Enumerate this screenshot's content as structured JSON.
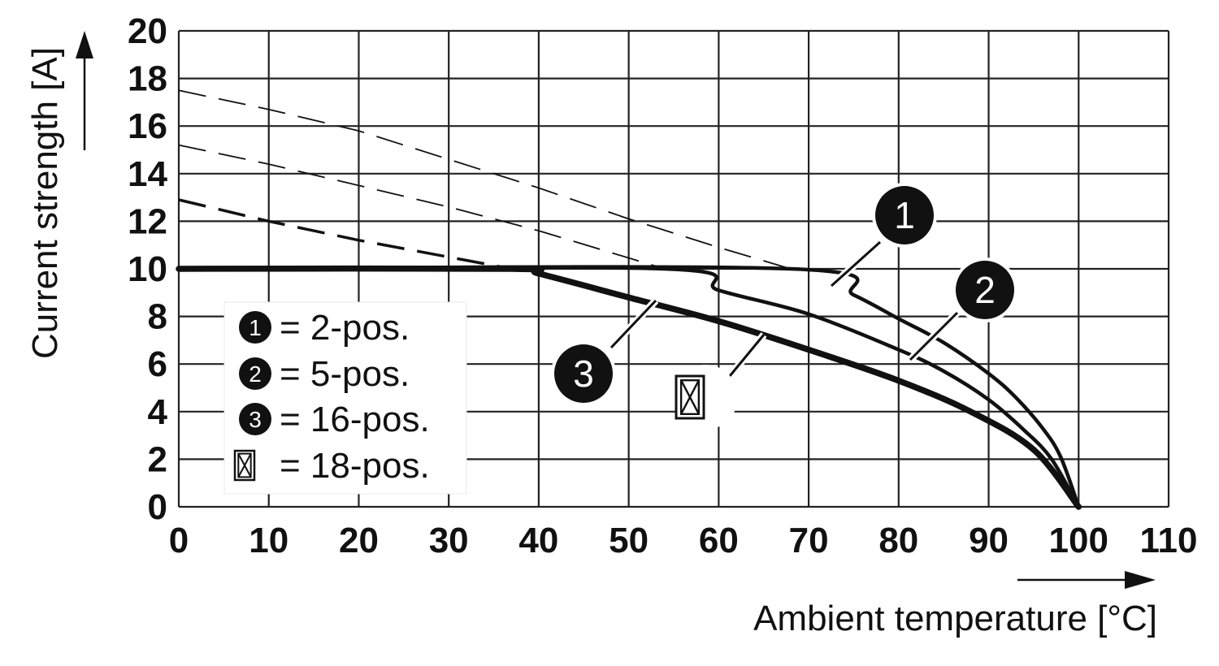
{
  "chart_data": {
    "type": "line",
    "xlabel": "Ambient temperature [°C]",
    "ylabel": "Current strength [A]",
    "xlim": [
      0,
      110
    ],
    "ylim": [
      0,
      20
    ],
    "x_ticks": [
      "0",
      "10",
      "20",
      "30",
      "40",
      "50",
      "60",
      "70",
      "80",
      "90",
      "100",
      "110"
    ],
    "y_ticks": [
      "0",
      "2",
      "4",
      "6",
      "8",
      "10",
      "12",
      "14",
      "16",
      "18",
      "20"
    ],
    "grid": true,
    "legend_position": "bottom-left",
    "colors": {
      "line": "#111111",
      "grid": "#222222",
      "background": "#ffffff"
    },
    "series": [
      {
        "marker": "1",
        "legend_label": "= 2-pos.",
        "x": [
          0,
          68,
          75,
          80,
          85,
          90,
          93,
          96,
          98,
          100
        ],
        "y": [
          10,
          10,
          8.9,
          7.9,
          6.9,
          5.6,
          4.6,
          3.3,
          2.1,
          0
        ],
        "dashed_x": [
          0,
          10,
          20,
          30,
          40,
          50,
          60,
          68
        ],
        "dashed_y": [
          17.5,
          16.7,
          15.8,
          14.6,
          13.4,
          12.1,
          10.9,
          10
        ]
      },
      {
        "marker": "2",
        "legend_label": "= 5-pos.",
        "x": [
          0,
          54,
          60,
          70,
          80,
          85,
          90,
          94,
          97,
          100
        ],
        "y": [
          10,
          10,
          9.1,
          8.1,
          6.6,
          5.7,
          4.5,
          3.2,
          2.0,
          0
        ],
        "dashed_x": [
          0,
          10,
          20,
          30,
          40,
          54
        ],
        "dashed_y": [
          15.2,
          14.4,
          13.5,
          12.6,
          11.6,
          10
        ]
      },
      {
        "marker": "3",
        "legend_label": "= 16-pos.",
        "x": [
          0,
          37,
          40,
          50,
          60,
          70,
          80,
          88,
          95,
          100
        ],
        "y": [
          10,
          10,
          9.8,
          8.8,
          7.8,
          6.6,
          5.3,
          4.0,
          2.4,
          0
        ],
        "dashed_x": [
          0,
          10,
          20,
          37
        ],
        "dashed_y": [
          12.9,
          12.0,
          11.2,
          10
        ]
      },
      {
        "marker": "crossed-box",
        "legend_label": "= 18-pos.",
        "x": [],
        "y": []
      }
    ]
  }
}
